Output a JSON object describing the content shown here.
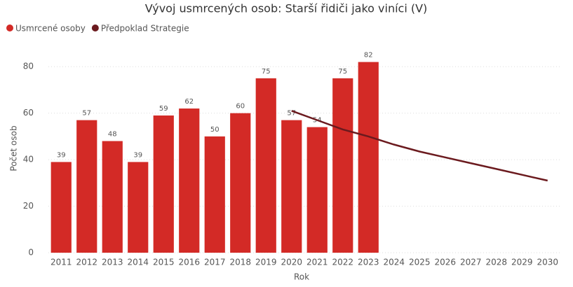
{
  "chart_data": {
    "type": "bar",
    "title": "Vývoj usmrcených osob: Starší řidiči jako viníci (V)",
    "x_label": "Rok",
    "y_label": "Počet osob",
    "categories": [
      "2011",
      "2012",
      "2013",
      "2014",
      "2015",
      "2016",
      "2017",
      "2018",
      "2019",
      "2020",
      "2021",
      "2022",
      "2023",
      "2024",
      "2025",
      "2026",
      "2027",
      "2028",
      "2029",
      "2030"
    ],
    "series": [
      {
        "name": "Usmrcené osoby",
        "color": "#d32a26",
        "type": "bar",
        "values": [
          39,
          57,
          48,
          39,
          59,
          62,
          50,
          60,
          75,
          57,
          54,
          75,
          82,
          null,
          null,
          null,
          null,
          null,
          null,
          null
        ]
      },
      {
        "name": "Předpoklad Strategie",
        "color": "#6b1a1e",
        "type": "line",
        "values": [
          null,
          null,
          null,
          null,
          null,
          null,
          null,
          null,
          null,
          61,
          57,
          53,
          50,
          46.5,
          43.5,
          41,
          38.5,
          36,
          33.5,
          31
        ]
      }
    ],
    "ylim": [
      0,
      90
    ],
    "yticks": [
      0,
      20,
      40,
      60,
      80
    ],
    "grid": true,
    "legend": "top-left"
  }
}
